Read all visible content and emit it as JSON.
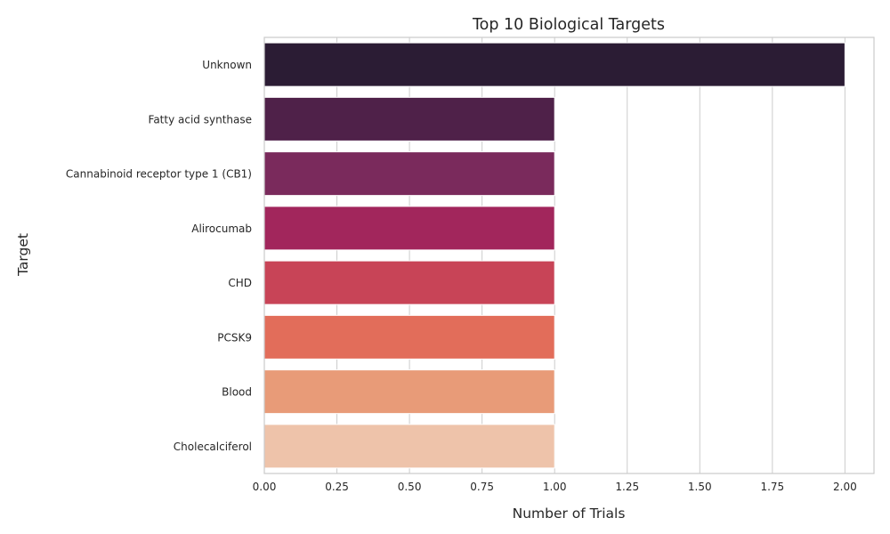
{
  "chart_data": {
    "type": "bar",
    "orientation": "horizontal",
    "title": "Top 10 Biological Targets",
    "xlabel": "Number of Trials",
    "ylabel": "Target",
    "categories": [
      "Unknown",
      "Fatty acid synthase",
      "Cannabinoid receptor type 1 (CB1)",
      "Alirocumab",
      "CHD",
      "PCSK9",
      "Blood",
      "Cholecalciferol"
    ],
    "values": [
      2,
      1,
      1,
      1,
      1,
      1,
      1,
      1
    ],
    "bar_colors": [
      "#2b1c34",
      "#4f2149",
      "#7a2a5c",
      "#a2265c",
      "#c84457",
      "#e26d5a",
      "#e89b78",
      "#eec3aa"
    ],
    "xlim": [
      0,
      2.1
    ],
    "xticks": [
      0,
      0.25,
      0.5,
      0.75,
      1.0,
      1.25,
      1.5,
      1.75,
      2.0
    ],
    "xtick_labels": [
      "0.00",
      "0.25",
      "0.50",
      "0.75",
      "1.00",
      "1.25",
      "1.50",
      "1.75",
      "2.00"
    ],
    "grid": "x",
    "grid_color": "#cccccc",
    "spine_color": "#cccccc"
  }
}
